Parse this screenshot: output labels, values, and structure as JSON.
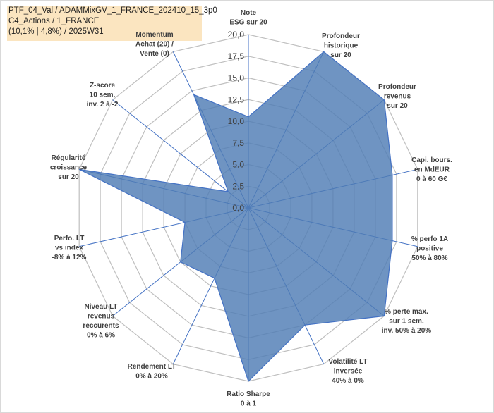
{
  "header": {
    "title_lines": [
      "PTF_04_Val / ADAMMixGV_1_FRANCE_202410_15_3p0",
      "C4_Actions / 1_FRANCE",
      "(10,1% | 4,8%) / 2025W31"
    ]
  },
  "chart_data": {
    "type": "radar",
    "title": "",
    "rmax": 20,
    "tick_values": [
      0,
      2.5,
      5,
      7.5,
      10,
      12.5,
      15,
      17.5,
      20
    ],
    "tick_labels": [
      "0,0",
      "2,5",
      "5,0",
      "7,5",
      "10,0",
      "12,5",
      "15,0",
      "17,5",
      "20,0"
    ],
    "axes": [
      {
        "label": [
          "Note",
          "ESG sur 20"
        ],
        "value": 10.5
      },
      {
        "label": [
          "Profondeur",
          "historique",
          "sur 20"
        ],
        "value": 20
      },
      {
        "label": [
          "Profondeur",
          "revenus",
          "sur 20"
        ],
        "value": 20
      },
      {
        "label": [
          "Capi. bours.",
          "en MdEUR",
          "0 à 60 G€"
        ],
        "value": 17
      },
      {
        "label": [
          "% perfo 1A",
          "positive",
          "50% à 80%"
        ],
        "value": 17
      },
      {
        "label": [
          "% perte max.",
          "sur 1 sem.",
          "inv. 50% à 20%"
        ],
        "value": 20
      },
      {
        "label": [
          "Volatilité LT",
          "inversée",
          "40% à 0%"
        ],
        "value": 15
      },
      {
        "label": [
          "Ratio Sharpe",
          "0 à 1"
        ],
        "value": 20
      },
      {
        "label": [
          "Rendement LT",
          "0% à 20%"
        ],
        "value": 9
      },
      {
        "label": [
          "Niveau LT",
          "revenus",
          "reccurents",
          "0% à 6%"
        ],
        "value": 10
      },
      {
        "label": [
          "Perfo. LT",
          "vs index",
          "-8% à 12%"
        ],
        "value": 7.5
      },
      {
        "label": [
          "Régularité",
          "croissance",
          "sur 20"
        ],
        "value": 20
      },
      {
        "label": [
          "Z-score",
          "10 sem.",
          "inv. 2 à -2"
        ],
        "value": 3
      },
      {
        "label": [
          "Momentum",
          "Achat (20) /",
          "Vente (0)"
        ],
        "value": 14.5
      }
    ],
    "colors": {
      "fill": "#4f7db5",
      "stroke": "#4472c4",
      "grid": "#bfbfbf",
      "spoke": "#4472c4"
    }
  }
}
